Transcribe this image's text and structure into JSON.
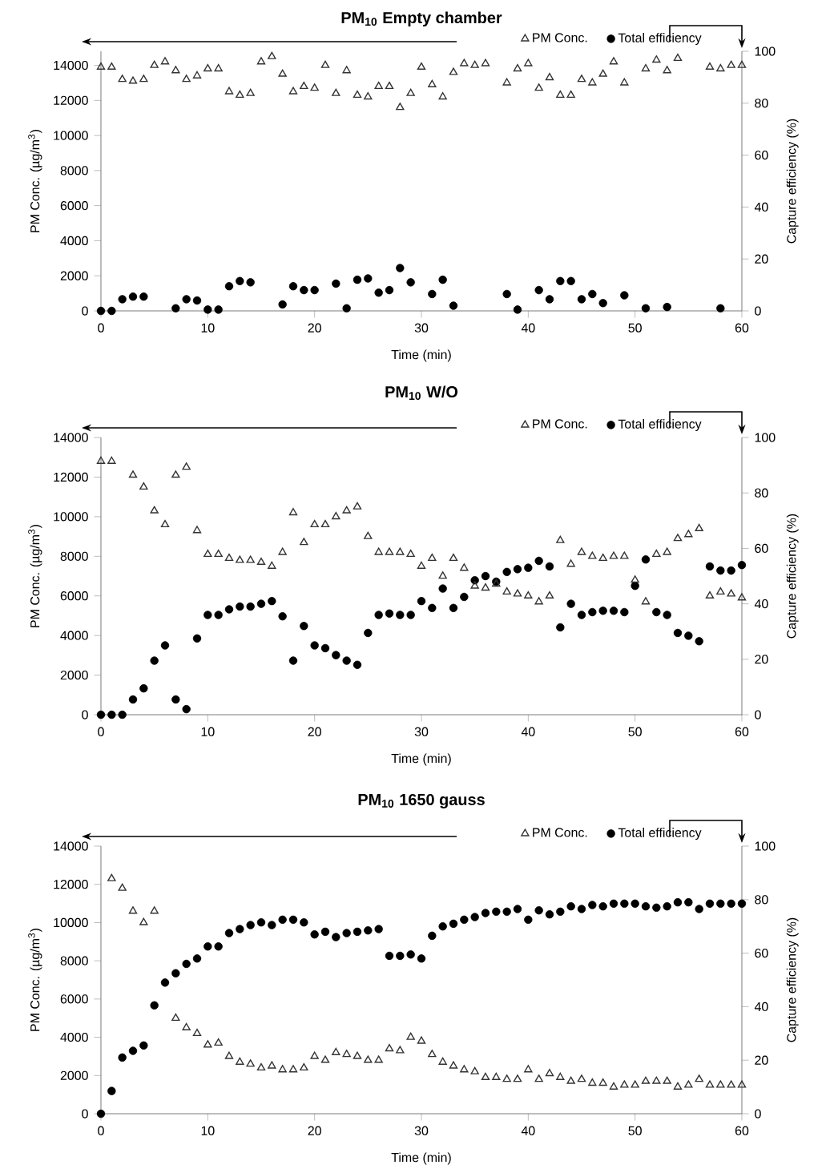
{
  "chart_data": [
    {
      "type": "scatter",
      "title": "PM$_{10}$ Empty chamber",
      "xlabel": "Time (min)",
      "ylabel": "PM Conc. (µg/m$^{3}$)",
      "y2label": "Capture efficiency (%)",
      "legend": "top right",
      "xlim": [
        0,
        60
      ],
      "xticks": [
        0,
        10,
        20,
        30,
        40,
        50,
        60
      ],
      "ylim": [
        0,
        14800
      ],
      "yticks": [
        0,
        2000,
        4000,
        6000,
        8000,
        10000,
        12000,
        14000
      ],
      "y2lim": [
        0,
        100
      ],
      "y2ticks": [
        0,
        20,
        40,
        60,
        80,
        100
      ],
      "series": [
        {
          "name": "PM Conc.",
          "color": "#333333",
          "marker": "triangle",
          "x": [
            0,
            1,
            2,
            3,
            4,
            5,
            6,
            7,
            8,
            9,
            10,
            11,
            12,
            13,
            14,
            15,
            16,
            17,
            18,
            19,
            20,
            21,
            22,
            23,
            24,
            25,
            26,
            27,
            28,
            29,
            30,
            31,
            32,
            33,
            34,
            35,
            36,
            38,
            39,
            40,
            41,
            42,
            43,
            44,
            45,
            46,
            47,
            48,
            49,
            51,
            52,
            53,
            54,
            57,
            58,
            59,
            60
          ],
          "values": [
            13900,
            13900,
            13200,
            13100,
            13200,
            14000,
            14200,
            13700,
            13200,
            13400,
            13800,
            13800,
            12500,
            12300,
            12400,
            14200,
            14500,
            13500,
            12500,
            12800,
            12700,
            14000,
            12400,
            13700,
            12300,
            12200,
            12800,
            12800,
            11600,
            12400,
            13900,
            12900,
            12200,
            13600,
            14100,
            14000,
            14100,
            13000,
            13800,
            14100,
            12700,
            13300,
            12300,
            12300,
            13200,
            13000,
            13500,
            14200,
            13000,
            13800,
            14300,
            13700,
            14400,
            13900,
            13800,
            14000,
            14000
          ]
        },
        {
          "name": "Total efficiency",
          "color": "#000000",
          "marker": "circle",
          "axis": "y2",
          "x": [
            0,
            1,
            2,
            3,
            4,
            7,
            8,
            9,
            10,
            11,
            12,
            13,
            14,
            17,
            18,
            19,
            20,
            22,
            23,
            24,
            25,
            26,
            27,
            28,
            29,
            31,
            32,
            33,
            38,
            39,
            41,
            42,
            43,
            44,
            45,
            46,
            47,
            49,
            51,
            53,
            58
          ],
          "values": [
            0,
            0,
            4.5,
            5.5,
            5.5,
            1,
            4.5,
            4,
            0.5,
            0.5,
            9.5,
            11.5,
            11,
            2.5,
            9.5,
            8,
            8,
            10.5,
            1,
            12,
            12.5,
            7,
            8,
            16.5,
            11,
            6.5,
            12,
            2,
            6.5,
            0.5,
            8,
            4.5,
            11.5,
            11.5,
            4.5,
            6.5,
            3,
            6,
            1,
            1.5,
            1
          ]
        }
      ]
    },
    {
      "type": "scatter",
      "title": "PM$_{10}$ W/O",
      "xlabel": "Time (min)",
      "ylabel": "PM Conc. (µg/m$^{3}$)",
      "y2label": "Capture efficiency (%)",
      "legend": "top right",
      "xlim": [
        0,
        60
      ],
      "xticks": [
        0,
        10,
        20,
        30,
        40,
        50,
        60
      ],
      "ylim": [
        0,
        14000
      ],
      "yticks": [
        0,
        2000,
        4000,
        6000,
        8000,
        10000,
        12000,
        14000
      ],
      "y2lim": [
        0,
        100
      ],
      "y2ticks": [
        0,
        20,
        40,
        60,
        80,
        100
      ],
      "series": [
        {
          "name": "PM Conc.",
          "color": "#333333",
          "marker": "triangle",
          "x": [
            0,
            1,
            3,
            4,
            5,
            6,
            7,
            8,
            9,
            10,
            11,
            12,
            13,
            14,
            15,
            16,
            17,
            18,
            19,
            20,
            21,
            22,
            23,
            24,
            25,
            26,
            27,
            28,
            29,
            30,
            31,
            32,
            33,
            34,
            35,
            36,
            37,
            38,
            39,
            40,
            41,
            42,
            43,
            44,
            45,
            46,
            47,
            48,
            49,
            50,
            51,
            52,
            53,
            54,
            55,
            56,
            57,
            58,
            59,
            60
          ],
          "values": [
            12800,
            12800,
            12100,
            11500,
            10300,
            9600,
            12100,
            12500,
            9300,
            8100,
            8100,
            7900,
            7800,
            7800,
            7700,
            7500,
            8200,
            10200,
            8700,
            9600,
            9600,
            10000,
            10300,
            10500,
            9000,
            8200,
            8200,
            8200,
            8100,
            7500,
            7900,
            7000,
            7900,
            7400,
            6500,
            6400,
            6600,
            6200,
            6100,
            6000,
            5700,
            6000,
            8800,
            7600,
            8200,
            8000,
            7900,
            8000,
            8000,
            6800,
            5700,
            8100,
            8200,
            8900,
            9100,
            9400,
            6000,
            6200,
            6100,
            5900
          ]
        },
        {
          "name": "Total efficiency",
          "color": "#000000",
          "marker": "circle",
          "axis": "y2",
          "x": [
            0,
            1,
            2,
            3,
            4,
            5,
            6,
            7,
            8,
            9,
            10,
            11,
            12,
            13,
            14,
            15,
            16,
            17,
            18,
            19,
            20,
            21,
            22,
            23,
            24,
            25,
            26,
            27,
            28,
            29,
            30,
            31,
            32,
            33,
            34,
            35,
            36,
            37,
            38,
            39,
            40,
            41,
            42,
            43,
            44,
            45,
            46,
            47,
            48,
            49,
            50,
            51,
            52,
            53,
            54,
            55,
            56,
            57,
            58,
            59,
            60
          ],
          "values": [
            0,
            0,
            0,
            5.5,
            9.5,
            19.5,
            25,
            5.5,
            2,
            27.5,
            36,
            36,
            38,
            39,
            39,
            40,
            41,
            35.5,
            19.5,
            32,
            25,
            24,
            21.5,
            19.5,
            18,
            29.5,
            36,
            36.5,
            36,
            36,
            41,
            38.5,
            45.5,
            38.5,
            42.5,
            48.5,
            50,
            48,
            51.5,
            52.5,
            53,
            55.5,
            53.5,
            31.5,
            40,
            36,
            37,
            37.5,
            37.5,
            37,
            46.5,
            56,
            37,
            36,
            29.5,
            28.5,
            26.5,
            53.5,
            52,
            52,
            54
          ]
        }
      ]
    },
    {
      "type": "scatter",
      "title": "PM$_{10}$ 1650 gauss",
      "xlabel": "Time (min)",
      "ylabel": "PM Conc. (µg/m$^{3}$)",
      "y2label": "Capture efficiency (%)",
      "legend": "top right",
      "xlim": [
        0,
        60
      ],
      "xticks": [
        0,
        10,
        20,
        30,
        40,
        50,
        60
      ],
      "ylim": [
        0,
        14000
      ],
      "yticks": [
        0,
        2000,
        4000,
        6000,
        8000,
        10000,
        12000,
        14000
      ],
      "y2lim": [
        0,
        100
      ],
      "y2ticks": [
        0,
        20,
        40,
        60,
        80,
        100
      ],
      "series": [
        {
          "name": "PM Conc.",
          "color": "#333333",
          "marker": "triangle",
          "x": [
            1,
            2,
            3,
            4,
            5,
            7,
            8,
            9,
            10,
            11,
            12,
            13,
            14,
            15,
            16,
            17,
            18,
            19,
            20,
            21,
            22,
            23,
            24,
            25,
            26,
            27,
            28,
            29,
            30,
            31,
            32,
            33,
            34,
            35,
            36,
            37,
            38,
            39,
            40,
            41,
            42,
            43,
            44,
            45,
            46,
            47,
            48,
            49,
            50,
            51,
            52,
            53,
            54,
            55,
            56,
            57,
            58,
            59,
            60
          ],
          "values": [
            12300,
            11800,
            10600,
            10000,
            10600,
            5000,
            4500,
            4200,
            3600,
            3700,
            3000,
            2700,
            2600,
            2400,
            2500,
            2300,
            2300,
            2400,
            3000,
            2800,
            3200,
            3100,
            3000,
            2800,
            2800,
            3400,
            3300,
            4000,
            3800,
            3100,
            2700,
            2500,
            2300,
            2200,
            1900,
            1900,
            1800,
            1800,
            2300,
            1800,
            2100,
            1900,
            1700,
            1800,
            1600,
            1600,
            1400,
            1500,
            1500,
            1700,
            1700,
            1700,
            1400,
            1500,
            1800,
            1500,
            1500,
            1500,
            1500
          ]
        },
        {
          "name": "Total efficiency",
          "color": "#000000",
          "marker": "circle",
          "axis": "y2",
          "x": [
            0,
            1,
            2,
            3,
            4,
            5,
            6,
            7,
            8,
            9,
            10,
            11,
            12,
            13,
            14,
            15,
            16,
            17,
            18,
            19,
            20,
            21,
            22,
            23,
            24,
            25,
            26,
            27,
            28,
            29,
            30,
            31,
            32,
            33,
            34,
            35,
            36,
            37,
            38,
            39,
            40,
            41,
            42,
            43,
            44,
            45,
            46,
            47,
            48,
            49,
            50,
            51,
            52,
            53,
            54,
            55,
            56,
            57,
            58,
            59,
            60
          ],
          "values": [
            0,
            8.5,
            21,
            23.5,
            25.5,
            40.5,
            49,
            52.5,
            56,
            58,
            62.5,
            62.5,
            67.5,
            69,
            70.5,
            71.5,
            70.5,
            72.5,
            72.5,
            71.5,
            67,
            68,
            66,
            67.5,
            68,
            68.5,
            69,
            59,
            59,
            59.5,
            58,
            66.5,
            70,
            71,
            72.5,
            73.5,
            75,
            75.5,
            75.5,
            76.5,
            72.5,
            76,
            74.5,
            75.5,
            77.5,
            76.5,
            78,
            77.5,
            78.5,
            78.5,
            78.5,
            77.5,
            77,
            77.5,
            79,
            79,
            76.5,
            78.5,
            78.5,
            78.5,
            78.5
          ]
        }
      ]
    }
  ]
}
